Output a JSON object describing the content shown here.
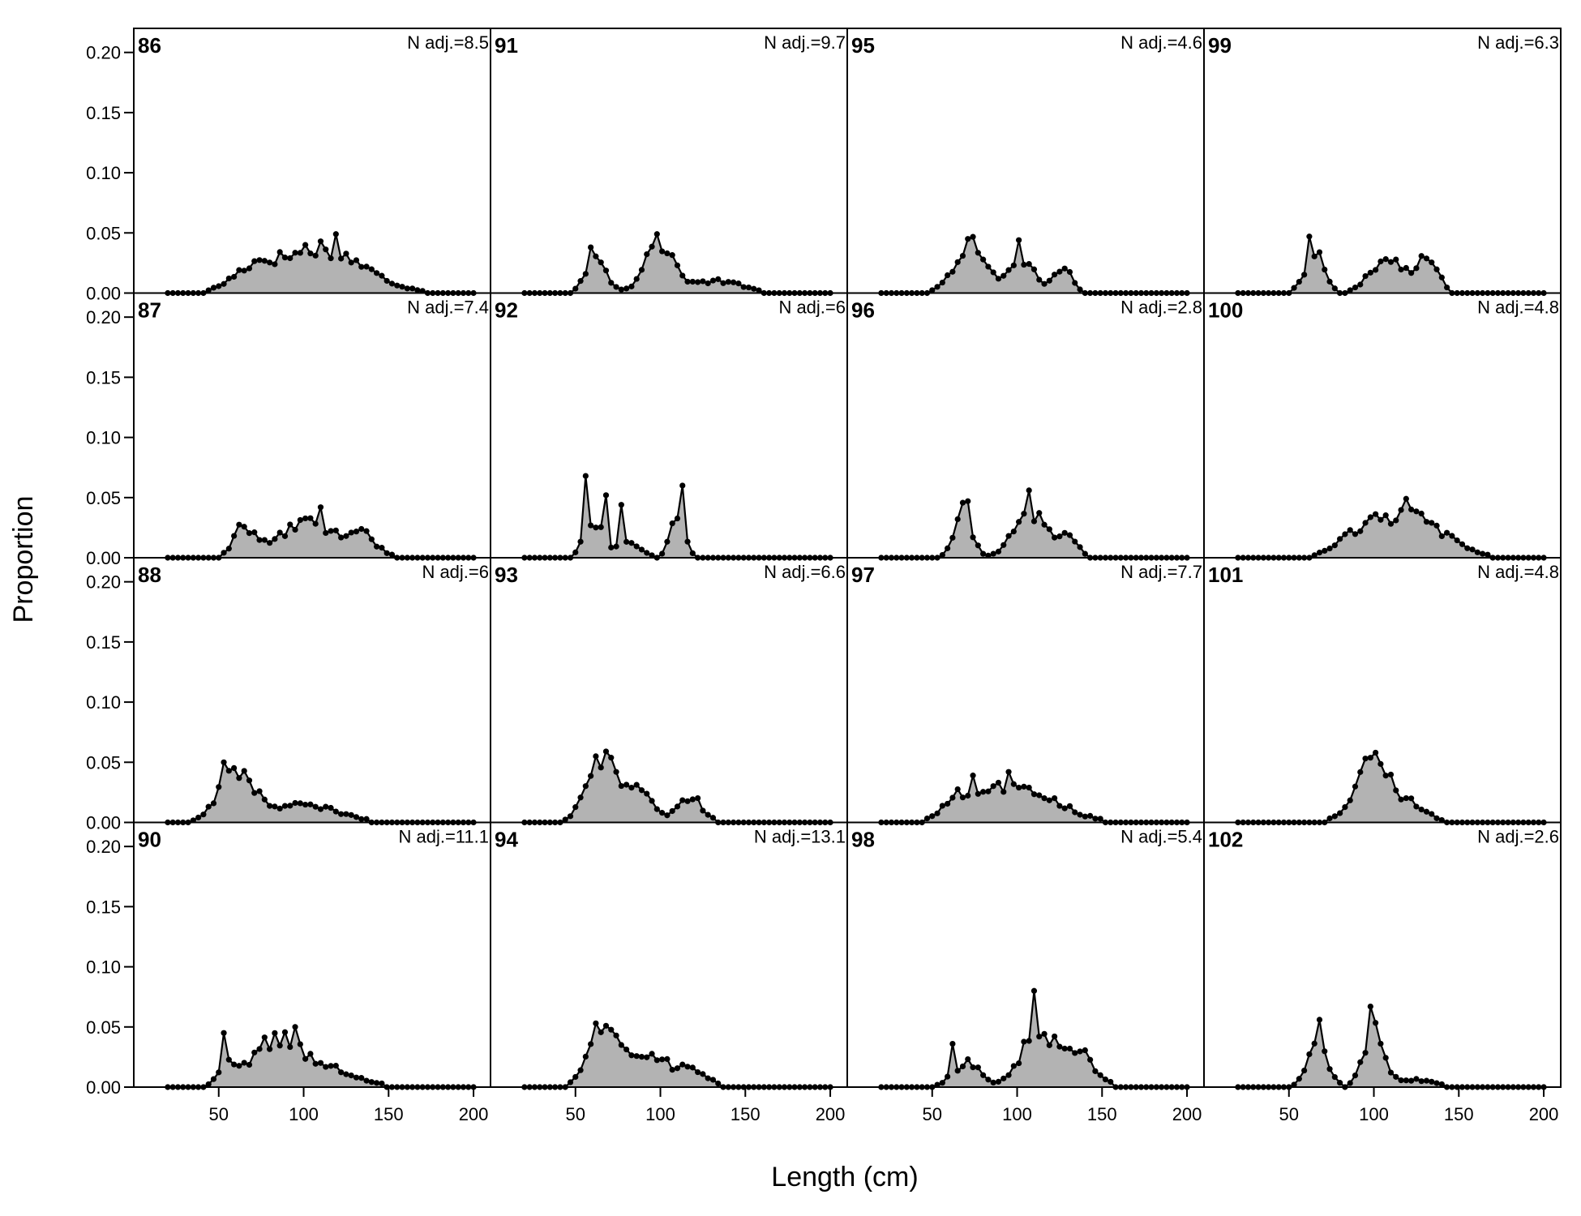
{
  "chart_data": {
    "type": "area",
    "xlabel": "Length (cm)",
    "ylabel": "Proportion",
    "xlim": [
      0,
      210
    ],
    "ylim": [
      0,
      0.22
    ],
    "xticks": [
      50,
      100,
      150,
      200
    ],
    "yticks": [
      0.0,
      0.05,
      0.1,
      0.15,
      0.2
    ],
    "ytick_labels": [
      "0.00",
      "0.05",
      "0.10",
      "0.15",
      "0.20"
    ],
    "xtick_labels": [
      "50",
      "100",
      "150",
      "200"
    ],
    "x_step": 3,
    "x_start": 20,
    "x_end": 200,
    "fill_color": "#b3b3b3",
    "line_color": "#000000",
    "layout": "4 rows x 4 columns",
    "panels": [
      {
        "label": "86",
        "n_adj": "N adj.=8.5",
        "peaks": [
          [
            110,
            0.037,
            25
          ],
          [
            70,
            0.015,
            12
          ]
        ],
        "spikes": [
          [
            100,
            0.04
          ],
          [
            119,
            0.049
          ],
          [
            110,
            0.043
          ]
        ]
      },
      {
        "label": "91",
        "n_adj": "N adj.=9.7",
        "peaks": [
          [
            100,
            0.04,
            9
          ],
          [
            62,
            0.032,
            6
          ],
          [
            135,
            0.01,
            13
          ]
        ],
        "spikes": [
          [
            98,
            0.049
          ],
          [
            58,
            0.038
          ]
        ]
      },
      {
        "label": "95",
        "n_adj": "N adj.=4.6",
        "peaks": [
          [
            72,
            0.04,
            9
          ],
          [
            102,
            0.03,
            8
          ],
          [
            127,
            0.022,
            5
          ]
        ],
        "spikes": [
          [
            102,
            0.044
          ],
          [
            72,
            0.045
          ]
        ]
      },
      {
        "label": "99",
        "n_adj": "N adj.=6.3",
        "peaks": [
          [
            65,
            0.028,
            6
          ],
          [
            108,
            0.028,
            10
          ],
          [
            132,
            0.028,
            6
          ]
        ],
        "spikes": [
          [
            62,
            0.047
          ],
          [
            68,
            0.034
          ]
        ]
      },
      {
        "label": "87",
        "n_adj": "N adj.=7.4",
        "peaks": [
          [
            65,
            0.024,
            6
          ],
          [
            103,
            0.028,
            18
          ],
          [
            135,
            0.015,
            8
          ]
        ],
        "spikes": [
          [
            110,
            0.042
          ]
        ]
      },
      {
        "label": "92",
        "n_adj": "N adj.=6",
        "peaks": [
          [
            60,
            0.032,
            5
          ],
          [
            110,
            0.04,
            4
          ],
          [
            80,
            0.013,
            8
          ]
        ],
        "spikes": [
          [
            56,
            0.068
          ],
          [
            68,
            0.052
          ],
          [
            78,
            0.044
          ],
          [
            112,
            0.06
          ]
        ]
      },
      {
        "label": "96",
        "n_adj": "N adj.=2.8",
        "peaks": [
          [
            68,
            0.042,
            5
          ],
          [
            108,
            0.036,
            10
          ],
          [
            130,
            0.014,
            6
          ]
        ],
        "spikes": [
          [
            106,
            0.056
          ],
          [
            72,
            0.047
          ]
        ]
      },
      {
        "label": "100",
        "n_adj": "N adj.=4.8",
        "peaks": [
          [
            120,
            0.036,
            20
          ],
          [
            90,
            0.013,
            12
          ]
        ],
        "spikes": [
          [
            120,
            0.049
          ]
        ]
      },
      {
        "label": "88",
        "n_adj": "N adj.=6",
        "peaks": [
          [
            60,
            0.044,
            10
          ],
          [
            100,
            0.014,
            20
          ]
        ],
        "spikes": [
          [
            52,
            0.05
          ]
        ]
      },
      {
        "label": "93",
        "n_adj": "N adj.=6.6",
        "peaks": [
          [
            65,
            0.045,
            9
          ],
          [
            85,
            0.025,
            10
          ],
          [
            118,
            0.02,
            7
          ]
        ],
        "spikes": [
          [
            68,
            0.059
          ],
          [
            62,
            0.055
          ]
        ]
      },
      {
        "label": "97",
        "n_adj": "N adj.=7.7",
        "peaks": [
          [
            100,
            0.032,
            22
          ],
          [
            65,
            0.014,
            8
          ]
        ],
        "spikes": [
          [
            75,
            0.039
          ],
          [
            95,
            0.042
          ]
        ]
      },
      {
        "label": "101",
        "n_adj": "N adj.=4.8",
        "peaks": [
          [
            100,
            0.05,
            11
          ],
          [
            125,
            0.012,
            8
          ]
        ],
        "spikes": [
          [
            102,
            0.058
          ]
        ]
      },
      {
        "label": "90",
        "n_adj": "N adj.=11.1",
        "peaks": [
          [
            85,
            0.04,
            15
          ],
          [
            120,
            0.012,
            15
          ],
          [
            55,
            0.015,
            5
          ]
        ],
        "spikes": [
          [
            53,
            0.045
          ],
          [
            95,
            0.05
          ]
        ]
      },
      {
        "label": "94",
        "n_adj": "N adj.=13.1",
        "peaks": [
          [
            65,
            0.045,
            8
          ],
          [
            90,
            0.028,
            15
          ],
          [
            120,
            0.012,
            8
          ]
        ],
        "spikes": [
          [
            63,
            0.053
          ],
          [
            68,
            0.051
          ]
        ]
      },
      {
        "label": "98",
        "n_adj": "N adj.=5.4",
        "peaks": [
          [
            70,
            0.02,
            8
          ],
          [
            112,
            0.045,
            10
          ],
          [
            135,
            0.028,
            10
          ]
        ],
        "spikes": [
          [
            111,
            0.08
          ],
          [
            62,
            0.036
          ]
        ]
      },
      {
        "label": "102",
        "n_adj": "N adj.=2.6",
        "peaks": [
          [
            67,
            0.035,
            6
          ],
          [
            100,
            0.045,
            6
          ],
          [
            125,
            0.006,
            12
          ]
        ],
        "spikes": [
          [
            99,
            0.067
          ],
          [
            67,
            0.056
          ]
        ]
      }
    ]
  }
}
